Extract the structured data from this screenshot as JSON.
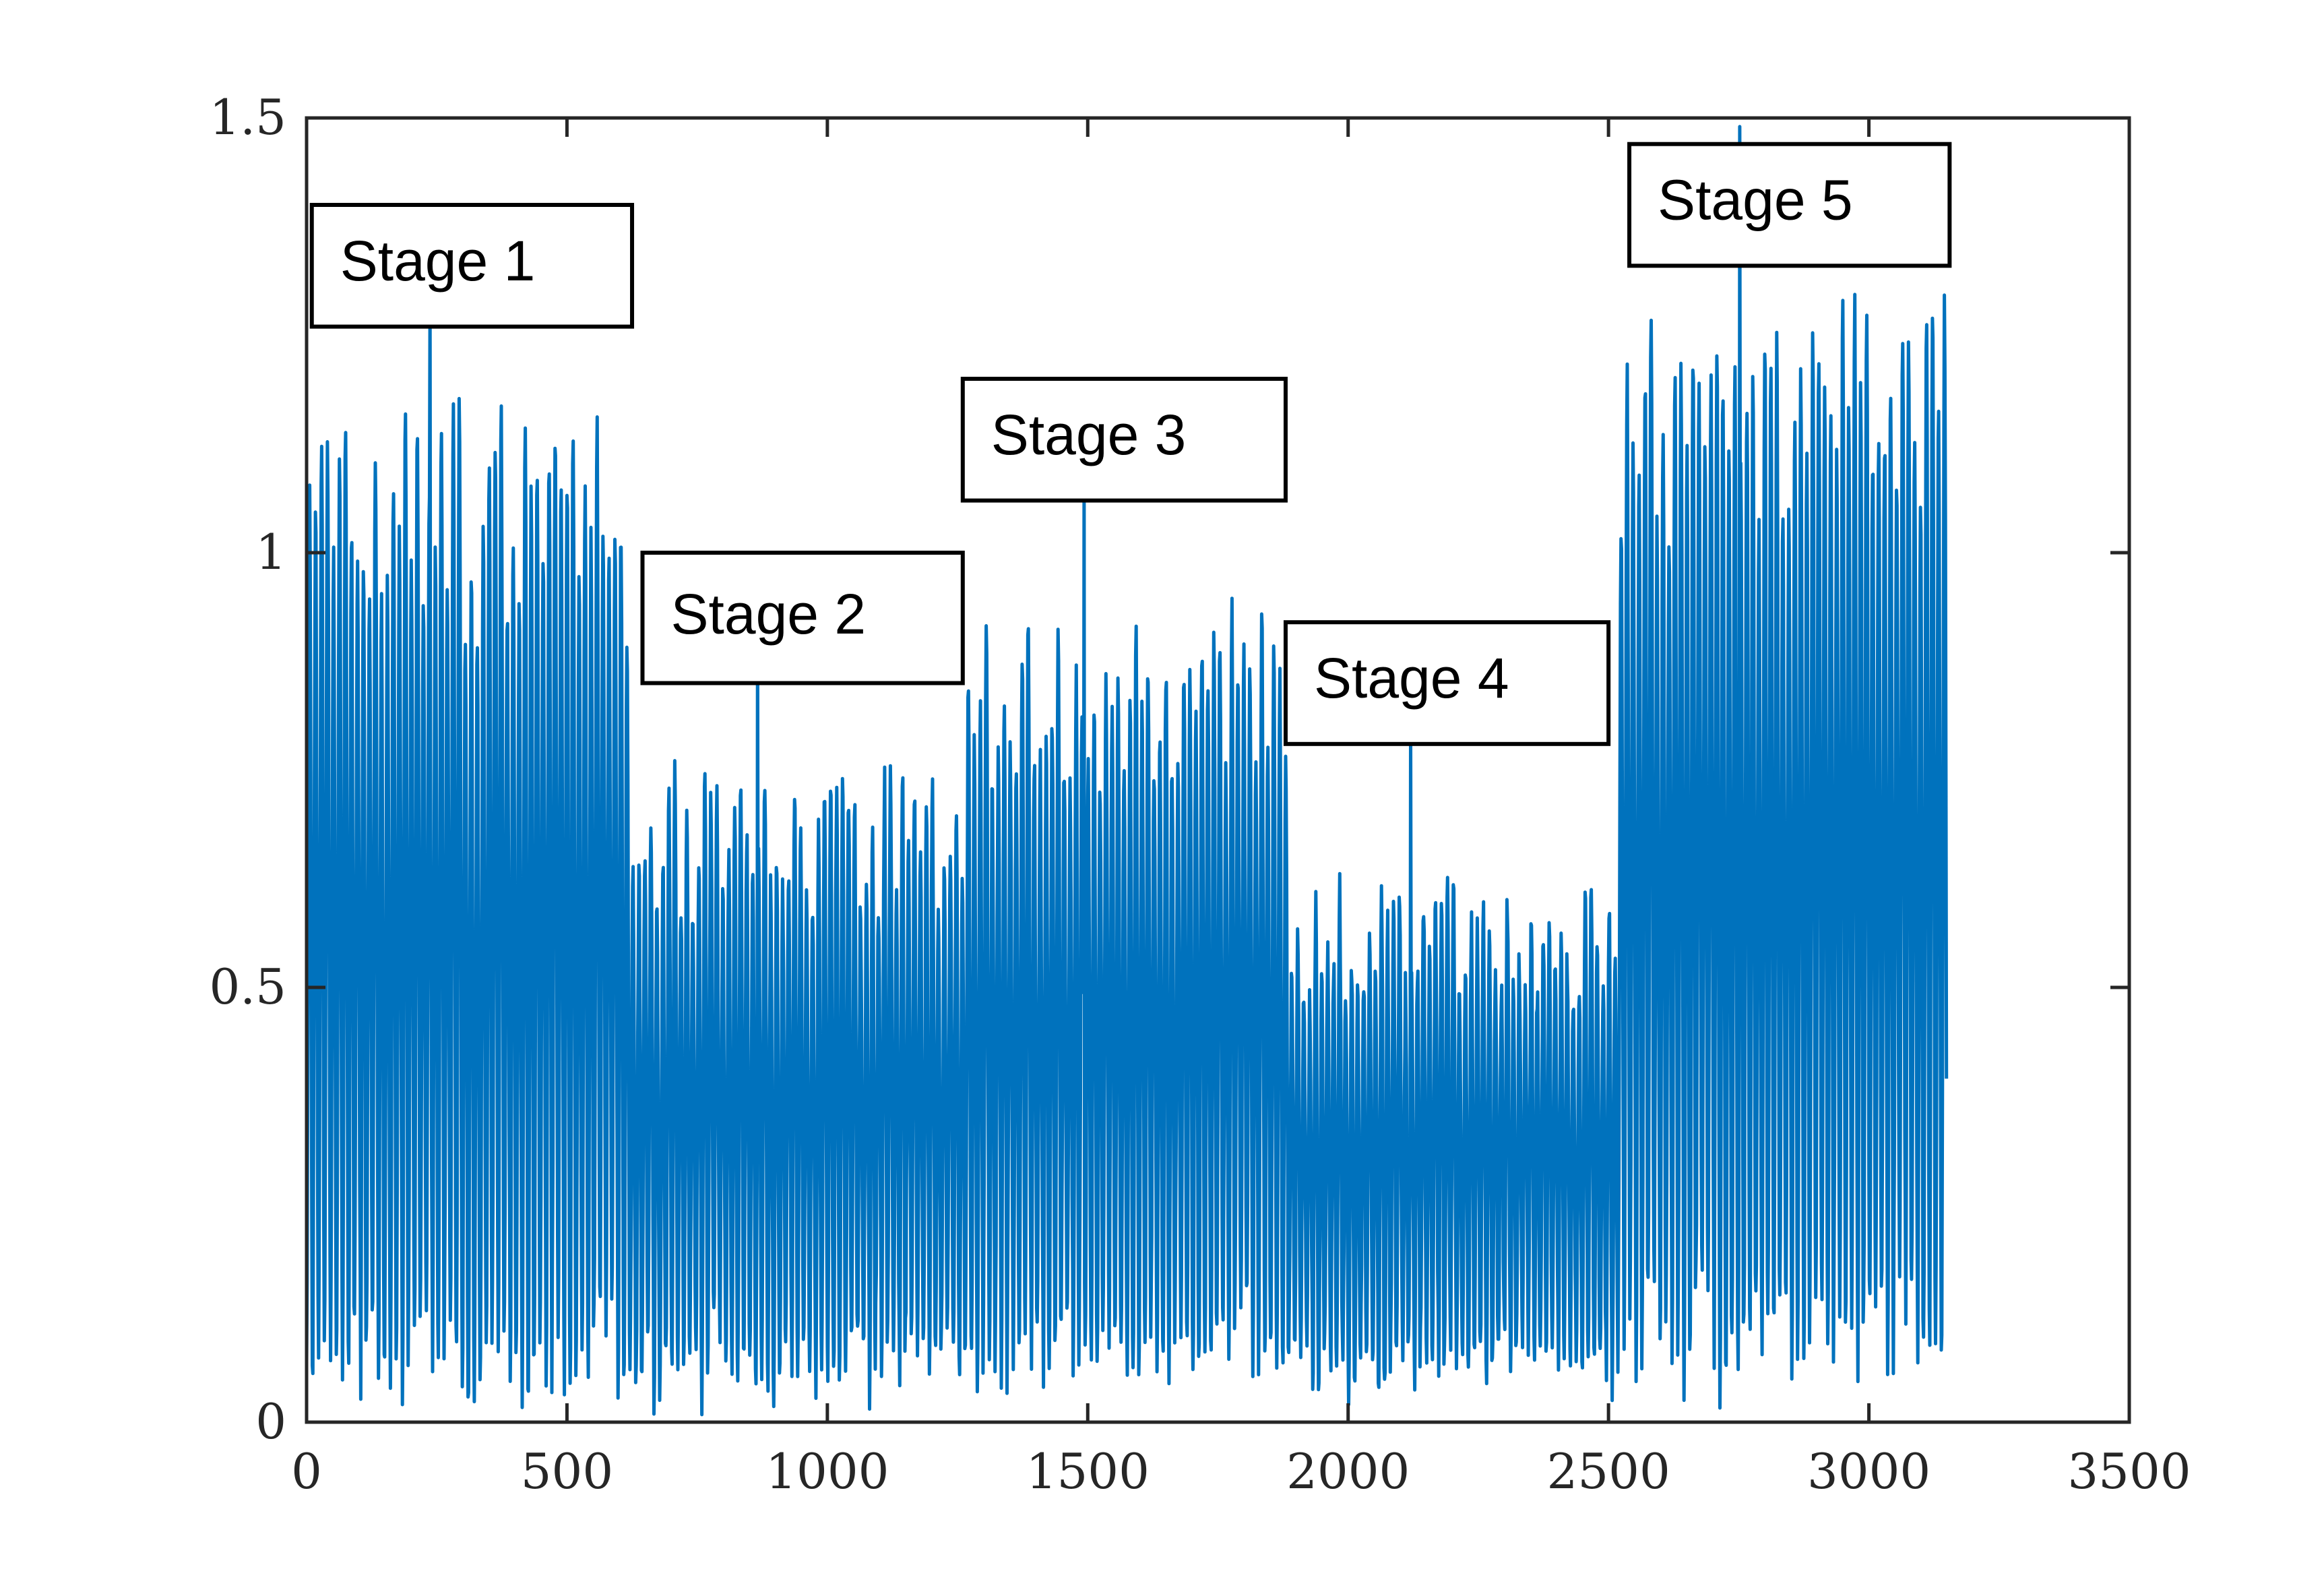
{
  "chart_data": {
    "type": "line",
    "title": "",
    "xlabel": "",
    "ylabel": "",
    "xlim": [
      0,
      3500
    ],
    "ylim": [
      0,
      1.5
    ],
    "x_ticks": [
      "0",
      "500",
      "1000",
      "1500",
      "2000",
      "2500",
      "3000",
      "3500"
    ],
    "y_ticks": [
      "0",
      "0.5",
      "1",
      "1.5"
    ],
    "grid": false,
    "legend": "none",
    "line_color": "#0072BD",
    "series": [
      {
        "n_points": 3150,
        "segments": [
          {
            "x_start": 0,
            "x_end": 620,
            "min": 0.02,
            "max": 1.16,
            "period": 11.5
          },
          {
            "x_start": 620,
            "x_end": 1260,
            "min": 0.03,
            "max": 0.76,
            "period": 11.5
          },
          {
            "x_start": 1260,
            "x_end": 1880,
            "min": 0.04,
            "max": 0.93,
            "period": 11.5
          },
          {
            "x_start": 1880,
            "x_end": 2510,
            "min": 0.03,
            "max": 0.62,
            "period": 11.5
          },
          {
            "x_start": 2510,
            "x_end": 3150,
            "min": 0.03,
            "max": 1.3,
            "period": 11.5
          }
        ],
        "peaks": [
          {
            "x": 237,
            "y": 1.29
          },
          {
            "x": 866,
            "y": 0.9
          },
          {
            "x": 1493,
            "y": 1.09
          },
          {
            "x": 2120,
            "y": 0.79
          },
          {
            "x": 2752,
            "y": 1.49
          }
        ]
      }
    ],
    "annotations": [
      {
        "text": "Stage 1",
        "x_range": [
          10,
          625
        ],
        "y_range": [
          1.26,
          1.4
        ]
      },
      {
        "text": "Stage 2",
        "x_range": [
          645,
          1260
        ],
        "y_range": [
          0.85,
          1.0
        ]
      },
      {
        "text": "Stage 3",
        "x_range": [
          1260,
          1880
        ],
        "y_range": [
          1.06,
          1.2
        ]
      },
      {
        "text": "Stage 4",
        "x_range": [
          1880,
          2500
        ],
        "y_range": [
          0.78,
          0.92
        ]
      },
      {
        "text": "Stage 5",
        "x_range": [
          2540,
          3155
        ],
        "y_range": [
          1.33,
          1.47
        ]
      }
    ]
  }
}
